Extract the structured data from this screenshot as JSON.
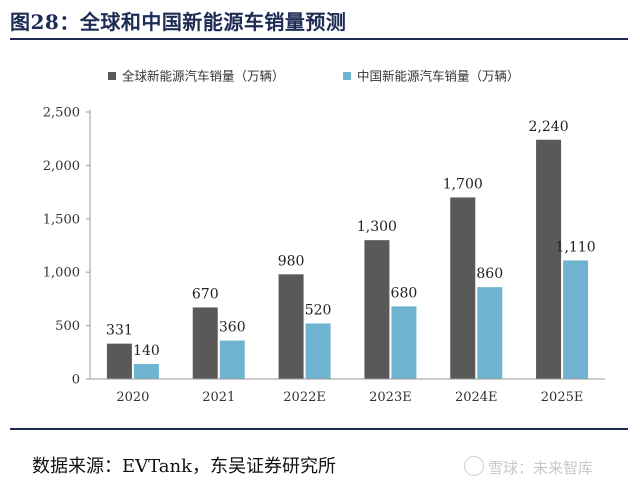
{
  "header": {
    "title": "图28：全球和中国新能源车销量预测"
  },
  "footer": {
    "source": "数据来源：EVTank，东吴证券研究所",
    "watermark": "雪球：未来智库"
  },
  "chart_data": {
    "type": "bar",
    "categories": [
      "2020",
      "2021",
      "2022E",
      "2023E",
      "2024E",
      "2025E"
    ],
    "series": [
      {
        "name": "全球新能源汽车销量（万辆）",
        "values": [
          331,
          670,
          980,
          1300,
          1700,
          2240
        ],
        "labels": [
          "331",
          "670",
          "980",
          "1,300",
          "1,700",
          "2,240"
        ],
        "color": "#595959"
      },
      {
        "name": "中国新能源汽车销量（万辆）",
        "values": [
          140,
          360,
          520,
          680,
          860,
          1110
        ],
        "labels": [
          "140",
          "360",
          "520",
          "680",
          "860",
          "1,110"
        ],
        "color": "#70b3d1"
      }
    ],
    "yticks": [
      0,
      500,
      1000,
      1500,
      2000,
      2500
    ],
    "ytick_labels": [
      "0",
      "500",
      "1,000",
      "1,500",
      "2,000",
      "2,500"
    ],
    "ylim": [
      0,
      2500
    ],
    "grid": false,
    "legend_position": "top-center"
  }
}
